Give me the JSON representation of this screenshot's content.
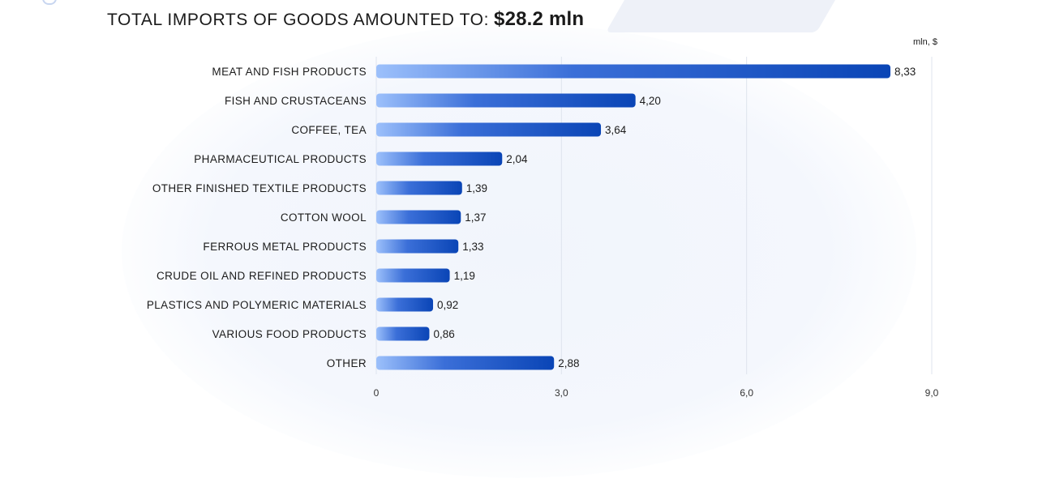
{
  "header": {
    "title": "TOTAL IMPORTS OF GOODS AMOUNTED TO:",
    "total": "$28.2 mln"
  },
  "colors": {
    "bar_start": "#9cc0fb",
    "bar_mid": "#3b6fd8",
    "bar_end": "#0a45b6",
    "gridline": "#dfe4ee"
  },
  "chart_data": {
    "type": "bar",
    "orientation": "horizontal",
    "unit_label": "mln, $",
    "categories": [
      "MEAT AND FISH PRODUCTS",
      "FISH AND CRUSTACEANS",
      "COFFEE, TEA",
      "PHARMACEUTICAL PRODUCTS",
      "OTHER FINISHED TEXTILE PRODUCTS",
      "COTTON WOOL",
      "FERROUS METAL PRODUCTS",
      "CRUDE OIL AND REFINED PRODUCTS",
      "PLASTICS AND POLYMERIC MATERIALS",
      "VARIOUS FOOD PRODUCTS",
      "OTHER"
    ],
    "values": [
      8.33,
      4.2,
      3.64,
      2.04,
      1.39,
      1.37,
      1.33,
      1.19,
      0.92,
      0.86,
      2.88
    ],
    "value_labels": [
      "8,33",
      "4,20",
      "3,64",
      "2,04",
      "1,39",
      "1,37",
      "1,33",
      "1,19",
      "0,92",
      "0,86",
      "2,88"
    ],
    "x_ticks": [
      0,
      3,
      6,
      9
    ],
    "x_tick_labels": [
      "0",
      "3,0",
      "6,0",
      "9,0"
    ],
    "xlim": [
      0,
      9
    ],
    "grid": true
  }
}
